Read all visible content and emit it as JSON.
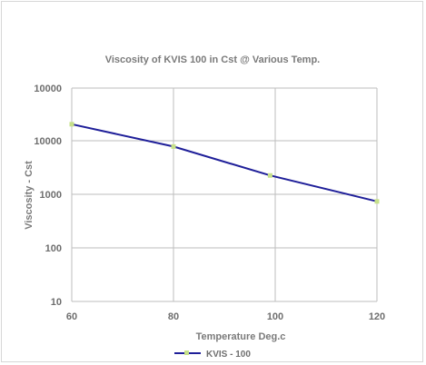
{
  "chart_data": {
    "type": "line",
    "title": "Viscosity of KVIS 100 in Cst @ Various Temp.",
    "xlabel": "Temperature Deg.c",
    "ylabel": "Viscosity - Cst",
    "xlim": [
      60,
      120
    ],
    "ylim": [
      10,
      10000
    ],
    "yscale": "log",
    "x_ticks": [
      "60",
      "80",
      "100",
      "120"
    ],
    "y_ticks": [
      "10",
      "100",
      "1000",
      "10000",
      "10000"
    ],
    "grid": true,
    "legend": "bottom",
    "series": [
      {
        "name": "KVIS - 100",
        "color": "#1f1f99",
        "marker_color": "#c6e08a",
        "x": [
          60,
          80,
          99,
          120
        ],
        "y": [
          21000,
          8000,
          2300,
          750
        ]
      }
    ]
  }
}
